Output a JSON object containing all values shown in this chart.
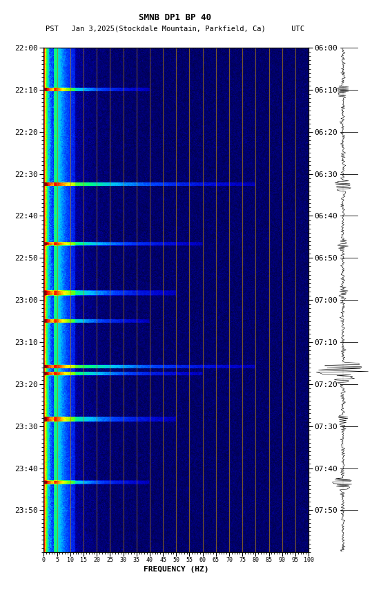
{
  "title1": "SMNB DP1 BP 40",
  "title2": "PST   Jan 3,2025(Stockdale Mountain, Parkfield, Ca)      UTC",
  "xlabel": "FREQUENCY (HZ)",
  "freq_min": 0,
  "freq_max": 100,
  "time_labels_left": [
    "22:00",
    "22:10",
    "22:20",
    "22:30",
    "22:40",
    "22:50",
    "23:00",
    "23:10",
    "23:20",
    "23:30",
    "23:40",
    "23:50"
  ],
  "time_labels_right": [
    "06:00",
    "06:10",
    "06:20",
    "06:30",
    "06:40",
    "06:50",
    "07:00",
    "07:10",
    "07:20",
    "07:30",
    "07:40",
    "07:50"
  ],
  "freq_ticks": [
    0,
    5,
    10,
    15,
    20,
    25,
    30,
    35,
    40,
    45,
    50,
    55,
    60,
    65,
    70,
    75,
    80,
    85,
    90,
    95,
    100
  ],
  "vertical_lines": [
    5,
    10,
    15,
    20,
    25,
    30,
    35,
    40,
    45,
    50,
    55,
    60,
    65,
    70,
    75,
    80,
    85,
    90,
    95
  ],
  "bg_color": "white",
  "n_time": 720,
  "n_freq": 500,
  "seed": 42,
  "event_times": [
    60,
    195,
    280,
    350,
    390,
    455,
    465,
    530,
    620
  ],
  "event_widths": [
    2,
    2,
    2,
    3,
    2,
    2,
    2,
    3,
    2
  ],
  "event_freqwidths": [
    200,
    400,
    300,
    250,
    200,
    400,
    300,
    250,
    200
  ]
}
